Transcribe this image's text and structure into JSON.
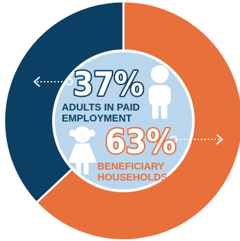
{
  "chart_data": {
    "type": "pie",
    "title": "",
    "slices": [
      {
        "name": "adults-in-paid-employment",
        "percent_label": "37%",
        "label_lines": [
          "ADULTS IN PAID",
          "EMPLOYMENT"
        ],
        "value": 37,
        "color": "#0b3f63"
      },
      {
        "name": "beneficiary-households",
        "percent_label": "63%",
        "label_lines": [
          "BENEFICIARY",
          "HOUSEHOLDS"
        ],
        "value": 63,
        "color": "#e8703a"
      }
    ],
    "center_fill": "#b9d6ec",
    "icons": [
      "boy-icon",
      "girl-icon",
      "left-arrow-icon",
      "right-arrow-icon"
    ]
  }
}
